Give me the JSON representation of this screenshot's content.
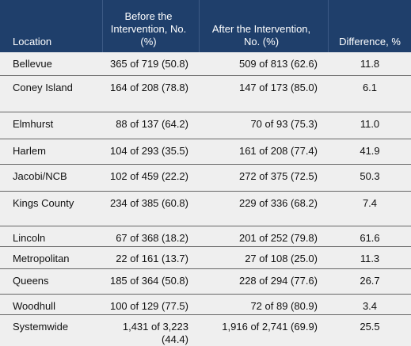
{
  "table": {
    "header": [
      "Location",
      "Before the Intervention, No. (%)",
      "After the Intervention, No. (%)",
      "Difference, %"
    ],
    "rows": [
      [
        "Bellevue",
        "365 of 719 (50.8)",
        "509 of 813 (62.6)",
        "11.8"
      ],
      [
        "Coney Island",
        "164 of 208 (78.8)",
        "147 of 173 (85.0)",
        "6.1"
      ],
      [
        "Elmhurst",
        "88 of 137 (64.2)",
        "70 of 93 (75.3)",
        "11.0"
      ],
      [
        "Harlem",
        "104 of 293 (35.5)",
        "161 of 208 (77.4)",
        "41.9"
      ],
      [
        "Jacobi/NCB",
        "102 of 459 (22.2)",
        "272 of 375 (72.5)",
        "50.3"
      ],
      [
        "Kings County",
        "234 of 385 (60.8)",
        "229 of 336 (68.2)",
        "7.4"
      ],
      [
        "Lincoln",
        "67 of 368 (18.2)",
        "201 of 252 (79.8)",
        "61.6"
      ],
      [
        "Metropolitan",
        "22 of 161 (13.7)",
        "27 of 108 (25.0)",
        "11.3"
      ],
      [
        "Queens",
        "185 of 364 (50.8)",
        "228 of 294 (77.6)",
        "26.7"
      ],
      [
        "Woodhull",
        "100 of 129 (77.5)",
        "72 of 89 (80.9)",
        "3.4"
      ],
      [
        "Systemwide",
        "1,431 of 3,223 (44.4)",
        "1,916 of 2,741 (69.9)",
        "25.5"
      ]
    ]
  }
}
